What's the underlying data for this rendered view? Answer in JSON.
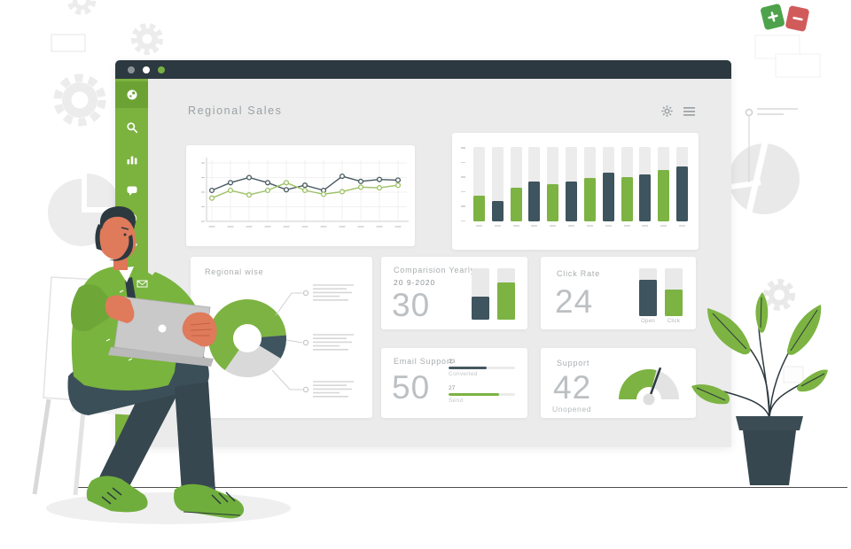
{
  "window": {
    "titlebar_dots": [
      "#8b9298",
      "#ffffff",
      "#76b043"
    ],
    "header": {
      "title": "Regional Sales"
    },
    "sidebar": {
      "color": "#7cb23e",
      "items": [
        {
          "icon": "dashboard-icon",
          "active": true
        },
        {
          "icon": "search-icon",
          "active": false
        },
        {
          "icon": "bar-chart-icon",
          "active": false
        },
        {
          "icon": "chat-icon",
          "active": false
        },
        {
          "icon": "mention-icon",
          "active": false
        },
        {
          "icon": "phone-icon",
          "active": false
        },
        {
          "icon": "mail-icon",
          "active": false
        }
      ]
    }
  },
  "panels": {
    "regional_wise": {
      "title": "Regional wise"
    },
    "comparison": {
      "title": "Comparision Yearly",
      "date": "20 9-2020",
      "value": "30"
    },
    "click_rate": {
      "title": "Click Rate",
      "value": "24"
    },
    "email_support": {
      "title": "Email Support",
      "value": "50"
    },
    "support": {
      "title": "Support",
      "value": "42",
      "sublabel": "Unopened"
    }
  },
  "chart_data": [
    {
      "id": "trend-line",
      "type": "line",
      "x": [
        1,
        2,
        3,
        4,
        5,
        6,
        7,
        8,
        9,
        10,
        11
      ],
      "ylim": [
        0,
        80
      ],
      "grid": true,
      "legend": "none",
      "series": [
        {
          "name": "dark",
          "color": "#46585f",
          "values": [
            40,
            52,
            60,
            52,
            41,
            48,
            40,
            62,
            54,
            57,
            56
          ]
        },
        {
          "name": "green",
          "color": "#9cc164",
          "values": [
            28,
            40,
            33,
            40,
            52,
            40,
            34,
            38,
            45,
            44,
            48
          ]
        }
      ]
    },
    {
      "id": "monthly-bars",
      "type": "bar",
      "track": 100,
      "values": [
        34,
        27,
        45,
        53,
        50,
        54,
        58,
        66,
        60,
        63,
        69,
        74
      ],
      "colors_alternate": [
        "#7cb342",
        "#3e545e"
      ]
    },
    {
      "id": "regional-donut",
      "type": "pie",
      "values": [
        64,
        10,
        26
      ],
      "colors": [
        "#7cb342",
        "#3e545e",
        "#d9d9d9"
      ],
      "start_angle": 215
    },
    {
      "id": "comparison-bars",
      "type": "bar",
      "track": 100,
      "values": [
        45,
        73
      ],
      "colors": [
        "#3e545e",
        "#7cb342"
      ]
    },
    {
      "id": "clickrate-bars",
      "type": "bar",
      "track": 100,
      "values": [
        76,
        55
      ],
      "colors": [
        "#3e545e",
        "#7cb342"
      ],
      "labels": [
        "Open",
        "Click"
      ]
    },
    {
      "id": "email-progress",
      "type": "bar",
      "orientation": "horizontal",
      "items": [
        {
          "label": "Converted",
          "value": "23",
          "pct": 57,
          "color": "#46585f"
        },
        {
          "label": "Send",
          "value": "27",
          "pct": 76,
          "color": "#7cb342"
        }
      ]
    },
    {
      "id": "support-gauge",
      "type": "gauge",
      "pct": 58,
      "needle_deg": 20,
      "color": "#7cb342",
      "track_color": "#e3e3e3"
    }
  ],
  "colors": {
    "accent_green": "#7cb342",
    "dark_slate": "#3e545e",
    "titlebar": "#2c3940",
    "dashboard_bg": "#ebebeb",
    "muted_text": "#a8acaf",
    "plus_tile": "#4da24b",
    "minus_tile": "#d15b5b"
  }
}
